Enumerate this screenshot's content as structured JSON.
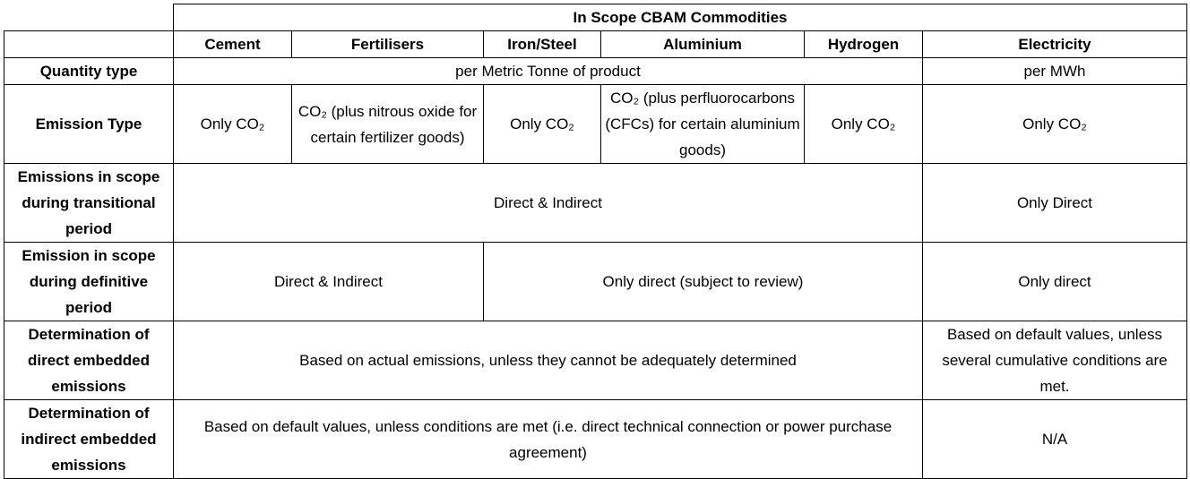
{
  "table": {
    "title": "In Scope CBAM Commodities",
    "columns": [
      "Cement",
      "Fertilisers",
      "Iron/Steel",
      "Aluminium",
      "Hydrogen",
      "Electricity"
    ],
    "rows": [
      [
        "Quantity type",
        "per Metric Tonne of product",
        "per MWh"
      ],
      [
        "Emission Type",
        "Only CO₂",
        "CO₂ (plus nitrous oxide for certain fertilizer goods)",
        "Only CO₂",
        "CO₂ (plus perfluorocarbons (CFCs) for certain aluminium goods)",
        "Only CO₂",
        "Only CO₂"
      ],
      [
        "Emissions in scope during transitional period",
        "Direct & Indirect",
        "Only Direct"
      ],
      [
        "Emission in scope during definitive period",
        "Direct & Indirect",
        "Only direct (subject to review)",
        "Only direct"
      ],
      [
        "Determination of direct embedded emissions",
        "Based on actual emissions, unless they cannot be adequately determined",
        "Based on default values, unless several cumulative conditions are met."
      ],
      [
        "Determination of indirect embedded emissions",
        "Based on default values, unless conditions are met (i.e. direct technical connection or power purchase agreement)",
        "N/A"
      ]
    ]
  }
}
